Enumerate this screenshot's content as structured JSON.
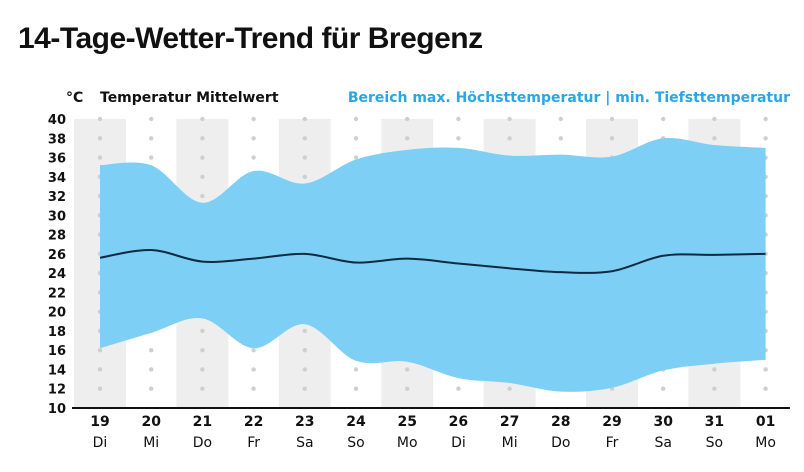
{
  "title": "14-Tage-Wetter-Trend für Bregenz",
  "colors": {
    "range_fill": "#7dcff5",
    "mean_line": "#0d2a40",
    "stripe": "#eeeeee",
    "dot": "#cfcfcf",
    "legend_range_text": "#2aa6e6",
    "text": "#111111"
  },
  "chart_data": {
    "type": "area",
    "unit_label": "°C",
    "legend": {
      "mean": "Temperatur Mittelwert",
      "range": "Bereich max. Höchsttemperatur | min. Tiefsttemperatur"
    },
    "ylim": [
      10,
      40
    ],
    "yticks": [
      40,
      38,
      36,
      34,
      32,
      30,
      28,
      26,
      24,
      22,
      20,
      18,
      16,
      14,
      12,
      10
    ],
    "x_dates": [
      "19",
      "20",
      "21",
      "22",
      "23",
      "24",
      "25",
      "26",
      "27",
      "28",
      "29",
      "30",
      "31",
      "01"
    ],
    "x_weekdays": [
      "Di",
      "Mi",
      "Do",
      "Fr",
      "Sa",
      "So",
      "Mo",
      "Di",
      "Mi",
      "Do",
      "Fr",
      "Sa",
      "So",
      "Mo"
    ],
    "series": [
      {
        "name": "Höchsttemperatur",
        "values": [
          35.2,
          35.2,
          31.3,
          34.6,
          33.3,
          35.8,
          36.8,
          37.0,
          36.2,
          36.3,
          36.1,
          38.0,
          37.3,
          37.0
        ]
      },
      {
        "name": "Temperatur Mittelwert",
        "values": [
          25.6,
          26.4,
          25.2,
          25.5,
          26.0,
          25.1,
          25.5,
          25.0,
          24.5,
          24.1,
          24.2,
          25.8,
          25.9,
          26.0
        ]
      },
      {
        "name": "Tiefsttemperatur",
        "values": [
          16.2,
          17.8,
          19.3,
          16.2,
          18.7,
          14.9,
          14.8,
          13.1,
          12.6,
          11.7,
          12.1,
          13.9,
          14.6,
          15.0
        ]
      }
    ]
  }
}
